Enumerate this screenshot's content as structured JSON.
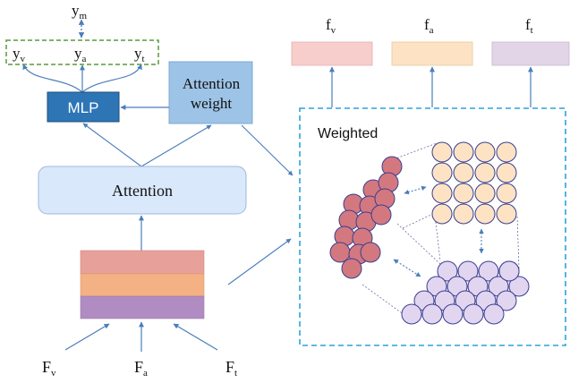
{
  "outputs": {
    "ym": {
      "base": "y",
      "sub": "m"
    },
    "yv": {
      "base": "y",
      "sub": "v"
    },
    "ya": {
      "base": "y",
      "sub": "a"
    },
    "yt": {
      "base": "y",
      "sub": "t"
    }
  },
  "mlp_label": "MLP",
  "attention_weight_label": [
    "Attention",
    "weight"
  ],
  "attention_label": "Attention",
  "inputs": {
    "fv_cap": {
      "base": "F",
      "sub": "v"
    },
    "fa_cap": {
      "base": "F",
      "sub": "a"
    },
    "ft_cap": {
      "base": "F",
      "sub": "t"
    }
  },
  "features": {
    "fv": {
      "base": "f",
      "sub": "v",
      "color": "#f8cecc"
    },
    "fa": {
      "base": "f",
      "sub": "a",
      "color": "#fde3c4"
    },
    "ft": {
      "base": "f",
      "sub": "t",
      "color": "#e1d5e7"
    }
  },
  "weighted_label": "Weighted",
  "colors": {
    "accent": "#4a7ebb",
    "mlp_fill": "#2e75b6",
    "attention_weight_fill": "#9dc3e6",
    "attention_fill": "#dae8fc",
    "dashed_green": "#5a9a3c",
    "dashed_blue": "#2aa4d8",
    "stack_top": "#e8a09a",
    "stack_mid": "#f4b183",
    "stack_bottom": "#b18cc2",
    "circle_red": "#d4787f",
    "circle_orange": "#fde3c4",
    "circle_purple": "#e1d5f0",
    "circle_stroke": "#3a3f8f"
  }
}
